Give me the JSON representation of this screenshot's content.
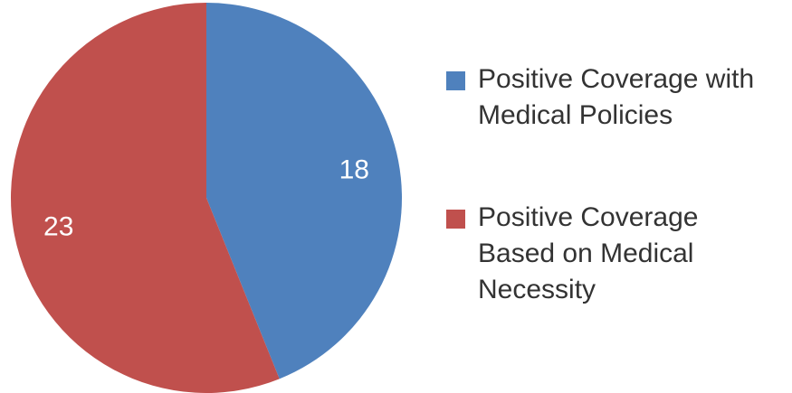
{
  "chart_data": {
    "type": "pie",
    "title": "",
    "categories": [
      "Positive Coverage with Medical Policies",
      "Positive Coverage Based on Medical Necessity"
    ],
    "values": [
      18,
      23
    ],
    "data_labels": [
      "18",
      "23"
    ],
    "colors": [
      "#4F81BD",
      "#C0504D"
    ],
    "legend": {
      "placement": "right",
      "entries": [
        {
          "label": "Positive Coverage with\nMedical Policies",
          "color": "#4F81BD"
        },
        {
          "label": "Positive Coverage\nBased on Medical\nNecessity",
          "color": "#C0504D"
        }
      ]
    }
  }
}
